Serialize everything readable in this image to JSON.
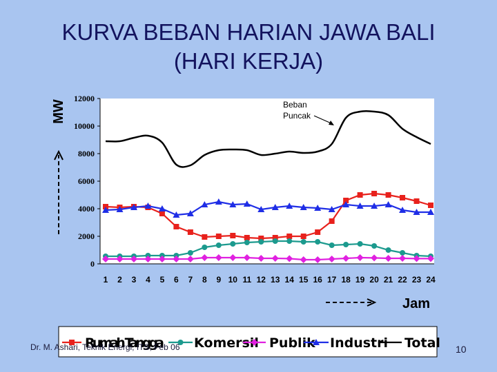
{
  "slide": {
    "title_line1": "KURVA BEBAN HARIAN JAWA BALI",
    "title_line2": "(HARI KERJA)",
    "footer_left": "Dr. M. Ashari, Teknik Energi, ITS, Feb 06",
    "page_number": "10"
  },
  "chart_data": {
    "type": "line",
    "ylabel": "MW",
    "xlabel": "Jam",
    "x": [
      1,
      2,
      3,
      4,
      5,
      6,
      7,
      8,
      9,
      10,
      11,
      12,
      13,
      14,
      15,
      16,
      17,
      18,
      19,
      20,
      21,
      22,
      23,
      24
    ],
    "ylim": [
      0,
      12000
    ],
    "yticks": [
      0,
      2000,
      4000,
      6000,
      8000,
      10000,
      12000
    ],
    "annotation": {
      "text_line1": "Beban",
      "text_line2": "Puncak",
      "x": 17.5,
      "y": 10300
    },
    "legend_placement": "bottom",
    "series": [
      {
        "name": "Rumah Tangga",
        "color": "#e8211c",
        "marker": "square",
        "values": [
          4150,
          4100,
          4150,
          4100,
          3650,
          2700,
          2300,
          1950,
          2000,
          2050,
          1900,
          1850,
          1900,
          2000,
          2000,
          2300,
          3100,
          4600,
          5000,
          5100,
          5000,
          4800,
          4550,
          4250
        ]
      },
      {
        "name": "Komersil",
        "color": "#1c9a8e",
        "marker": "circle",
        "values": [
          550,
          550,
          550,
          600,
          600,
          600,
          800,
          1200,
          1350,
          1450,
          1550,
          1600,
          1650,
          1650,
          1600,
          1600,
          1350,
          1400,
          1450,
          1300,
          1000,
          800,
          600,
          550
        ]
      },
      {
        "name": "Publik",
        "color": "#e020e0",
        "marker": "diamond",
        "values": [
          350,
          350,
          350,
          350,
          350,
          350,
          350,
          450,
          450,
          450,
          450,
          400,
          400,
          380,
          300,
          300,
          350,
          400,
          450,
          430,
          400,
          400,
          380,
          380
        ]
      },
      {
        "name": "Industri",
        "color": "#1f2ee6",
        "marker": "triangle",
        "values": [
          3900,
          3950,
          4100,
          4200,
          4000,
          3550,
          3650,
          4300,
          4500,
          4300,
          4350,
          3950,
          4100,
          4200,
          4100,
          4050,
          3950,
          4300,
          4200,
          4200,
          4300,
          3900,
          3750,
          3750
        ]
      },
      {
        "name": "Total",
        "color": "#000000",
        "marker": "none",
        "values": [
          8900,
          8900,
          9150,
          9300,
          8800,
          7200,
          7150,
          7900,
          8250,
          8300,
          8250,
          7900,
          8000,
          8150,
          8050,
          8150,
          8700,
          10600,
          11050,
          11050,
          10800,
          9800,
          9200,
          8700
        ]
      }
    ]
  }
}
